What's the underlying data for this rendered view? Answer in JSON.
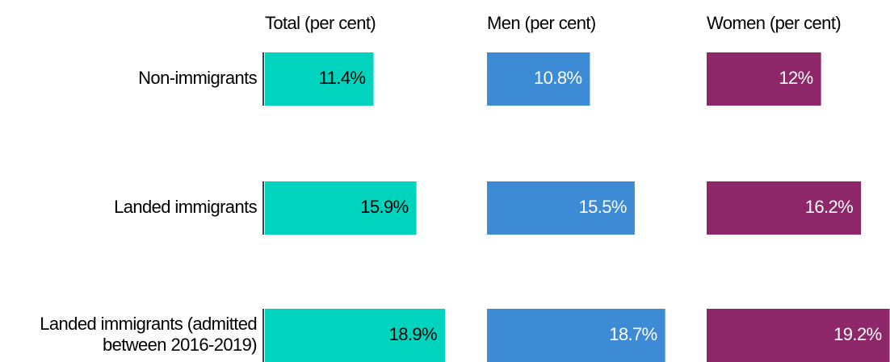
{
  "chart_data": {
    "type": "bar",
    "categories": [
      "Non-immigrants",
      "Landed immigrants",
      "Landed immigrants (admitted between 2016-2019)"
    ],
    "series": [
      {
        "name": "Total (per cent)",
        "color": "#00d4be",
        "label_color": "#000000",
        "values": [
          11.4,
          15.9,
          18.9
        ],
        "value_labels": [
          "11.4%",
          "15.9%",
          "18.9%"
        ]
      },
      {
        "name": "Men (per cent)",
        "color": "#3d8bd4",
        "label_color": "#ffffff",
        "values": [
          10.8,
          15.5,
          18.7
        ],
        "value_labels": [
          "10.8%",
          "15.5%",
          "18.7%"
        ]
      },
      {
        "name": "Women (per cent)",
        "color": "#8e266a",
        "label_color": "#ffffff",
        "values": [
          12,
          16.2,
          19.2
        ],
        "value_labels": [
          "12%",
          "16.2%",
          "19.2%"
        ]
      }
    ],
    "xlim": [
      0,
      20
    ]
  }
}
